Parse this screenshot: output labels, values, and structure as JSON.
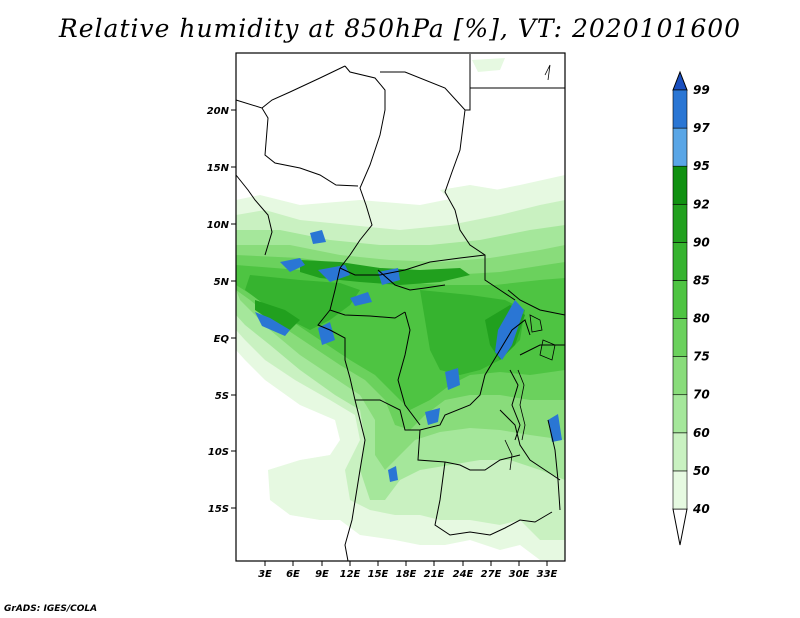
{
  "title": "Relative humidity at 850hPa [%], VT: 2020101600",
  "credit": "GrADS: IGES/COLA",
  "lat_labels": [
    "20N",
    "15N",
    "10N",
    "5N",
    "EQ",
    "5S",
    "10S",
    "15S"
  ],
  "lon_labels": [
    "3E",
    "6E",
    "9E",
    "12E",
    "15E",
    "18E",
    "21E",
    "24E",
    "27E",
    "30E",
    "33E"
  ],
  "colorbar": {
    "levels": [
      "40",
      "50",
      "60",
      "70",
      "75",
      "80",
      "85",
      "90",
      "92",
      "95",
      "97",
      "99"
    ],
    "colors": [
      "#ffffff",
      "#e6f9e1",
      "#c9f1c1",
      "#a5e79b",
      "#89dc7b",
      "#6bd15d",
      "#4ec442",
      "#36b32f",
      "#21a01e",
      "#109111",
      "#5aa6e6",
      "#2a76d4",
      "#1a4fbf"
    ]
  }
}
